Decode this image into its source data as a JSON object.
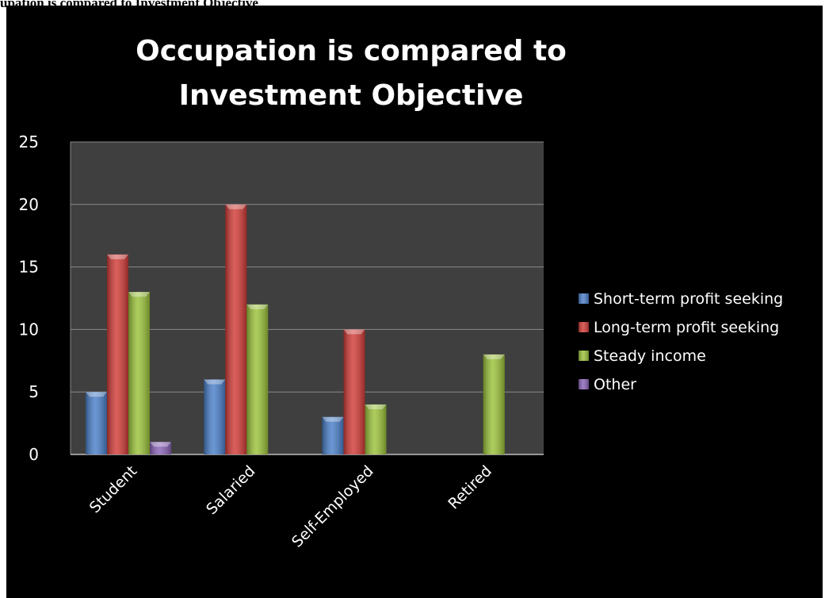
{
  "caption": "upation is compared to Investment Objective",
  "chart_data": {
    "type": "bar",
    "title": "Occupation is compared to Investment Objective",
    "categories": [
      "Student",
      "Salaried",
      "Self-Employed",
      "Retired"
    ],
    "series": [
      {
        "name": "Short-term profit seeking",
        "values": [
          5,
          6,
          3,
          0
        ],
        "color": "#4a7fc9"
      },
      {
        "name": "Long-term profit seeking",
        "values": [
          16,
          20,
          10,
          0
        ],
        "color": "#d13b37"
      },
      {
        "name": "Steady income",
        "values": [
          13,
          12,
          4,
          8
        ],
        "color": "#9bc23a"
      },
      {
        "name": "Other",
        "values": [
          1,
          0,
          0,
          0
        ],
        "color": "#8a63b8"
      }
    ],
    "ylim": [
      0,
      25
    ],
    "yticks": [
      0,
      5,
      10,
      15,
      20,
      25
    ],
    "grid": true,
    "legend_position": "right",
    "plot_background": "#3f3f3f",
    "background": "#000000"
  }
}
